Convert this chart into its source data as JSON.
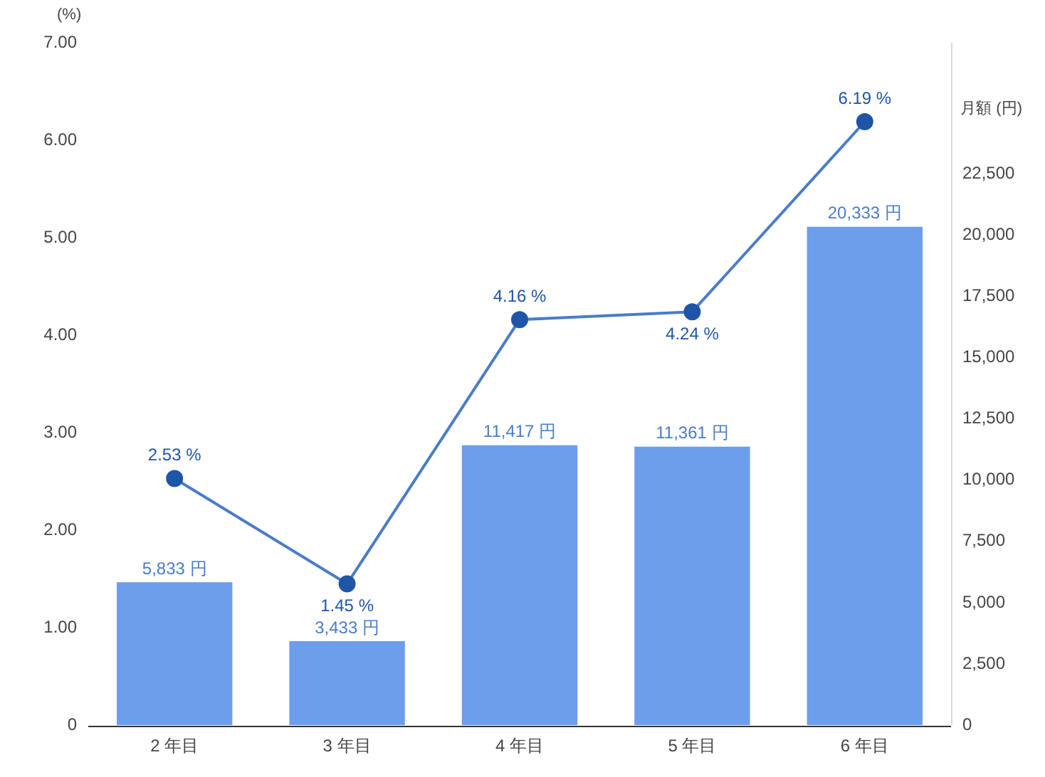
{
  "chart_data": {
    "type": "bar",
    "ylabel": "(%)",
    "y2label": "月額 (円)",
    "categories": [
      "2 年目",
      "3 年目",
      "4 年目",
      "5 年目",
      "6 年目"
    ],
    "series": [
      {
        "axis": "y2",
        "color": "#6d9eeb",
        "values": [
          5833,
          3433,
          11417,
          11361,
          20333
        ],
        "value_labels": [
          "5,833 円",
          "3,433 円",
          "11,417 円",
          "11,361 円",
          "20,333 円"
        ]
      },
      {
        "type": "line",
        "axis": "y",
        "color": "#4a7cc9",
        "marker": "circle",
        "values": [
          2.53,
          1.45,
          4.16,
          4.24,
          6.19
        ],
        "value_labels": [
          "2.53 %",
          "1.45 %",
          "4.16 %",
          "4.24 %",
          "6.19 %"
        ]
      }
    ],
    "ylim": [
      0,
      7
    ],
    "yticks": [
      0,
      {
        "value": 1,
        "label": "1.00"
      },
      {
        "value": 2,
        "label": "2.00"
      },
      {
        "value": 3,
        "label": "3.00"
      },
      {
        "value": 4,
        "label": "4.00"
      },
      {
        "value": 5,
        "label": "5.00"
      },
      {
        "value": 6,
        "label": "6.00"
      },
      {
        "value": 7,
        "label": "7.00"
      }
    ],
    "y2lim": [
      0,
      27840
    ],
    "y2ticks": [
      0,
      {
        "value": 2500,
        "label": "2,500"
      },
      {
        "value": 5000,
        "label": "5,000"
      },
      {
        "value": 7500,
        "label": "7,500"
      },
      {
        "value": 10000,
        "label": "10,000"
      },
      {
        "value": 12500,
        "label": "12,500"
      },
      {
        "value": 15000,
        "label": "15,000"
      },
      {
        "value": 17500,
        "label": "17,500"
      },
      {
        "value": 20000,
        "label": "20,000"
      },
      {
        "value": 22500,
        "label": "22,500"
      }
    ],
    "grid": false,
    "legend": false
  }
}
